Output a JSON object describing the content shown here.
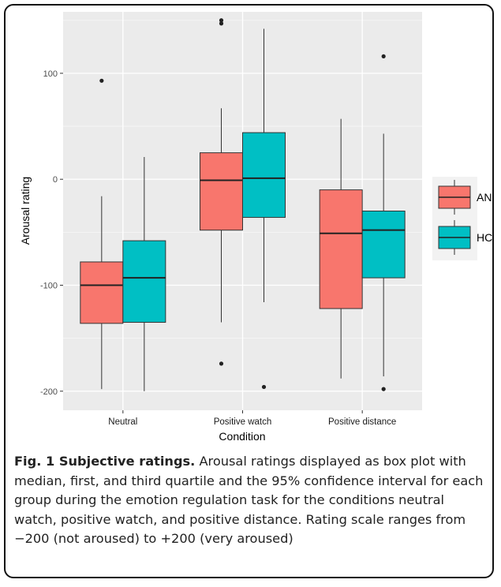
{
  "chart_data": {
    "type": "boxplot",
    "title": "",
    "xlabel": "Condition",
    "ylabel": "Arousal rating",
    "ylim": [
      -218,
      158
    ],
    "yticks": [
      100,
      0,
      -100,
      -200
    ],
    "categories": [
      "Neutral",
      "Positive watch",
      "Positive distance"
    ],
    "legend_position": "right",
    "grid": true,
    "series": [
      {
        "name": "AN",
        "color": "#F8766D",
        "boxes": [
          {
            "min": -198,
            "q1": -136,
            "median": -100,
            "q3": -78,
            "max": -16,
            "outliers": [
              93
            ]
          },
          {
            "min": -135,
            "q1": -48,
            "median": -1,
            "q3": 25,
            "max": 67,
            "outliers": [
              150,
              147,
              -174
            ]
          },
          {
            "min": -188,
            "q1": -122,
            "median": -51,
            "q3": -10,
            "max": 57,
            "outliers": []
          }
        ]
      },
      {
        "name": "HC",
        "color": "#00BFC4",
        "boxes": [
          {
            "min": -200,
            "q1": -135,
            "median": -93,
            "q3": -58,
            "max": 21,
            "outliers": []
          },
          {
            "min": -116,
            "q1": -36,
            "median": 1,
            "q3": 44,
            "max": 142,
            "outliers": [
              -196
            ]
          },
          {
            "min": -186,
            "q1": -93,
            "median": -48,
            "q3": -30,
            "max": 43,
            "outliers": [
              116,
              -198
            ]
          }
        ]
      }
    ]
  },
  "caption": {
    "lead": "Fig. 1 Subjective ratings.",
    "text": " Arousal ratings displayed as box plot with median, first, and third quartile and the 95% confidence interval for each group during the emotion regulation task for the conditions neutral watch, positive watch, and positive distance. Rating scale ranges from −200 (not aroused) to +200 (very aroused)"
  }
}
